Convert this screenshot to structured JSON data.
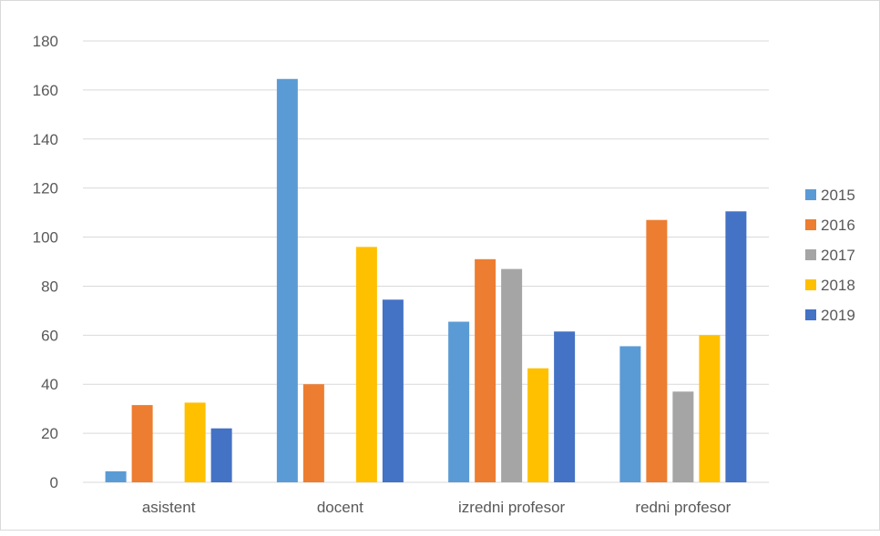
{
  "chart_data": {
    "type": "bar",
    "title": "",
    "xlabel": "",
    "ylabel": "",
    "categories": [
      "asistent",
      "docent",
      "izredni profesor",
      "redni profesor"
    ],
    "series": [
      {
        "name": "2015",
        "color": "#5B9BD5",
        "values": [
          4.5,
          164.5,
          65.5,
          55.5
        ]
      },
      {
        "name": "2016",
        "color": "#ED7D31",
        "values": [
          31.5,
          40,
          91,
          107
        ]
      },
      {
        "name": "2017",
        "color": "#A5A5A5",
        "values": [
          0,
          0,
          87,
          37
        ]
      },
      {
        "name": "2018",
        "color": "#FFC000",
        "values": [
          32.5,
          96,
          46.5,
          60
        ]
      },
      {
        "name": "2019",
        "color": "#4472C4",
        "values": [
          22,
          74.5,
          61.5,
          110.5
        ]
      }
    ],
    "ylim": [
      0,
      180
    ],
    "yticks": [
      "0",
      "20",
      "40",
      "60",
      "80",
      "100",
      "120",
      "140",
      "160",
      "180"
    ],
    "grid": true,
    "legend_position": "right"
  }
}
